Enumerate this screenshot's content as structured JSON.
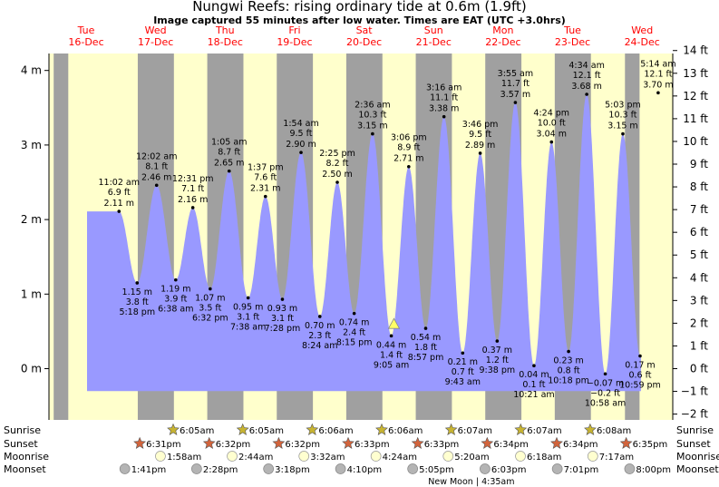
{
  "header": {
    "title": "Nungwi Reefs: rising  ordinary tide at 0.6m (1.9ft)",
    "subtitle": "Image captured 55 minutes after low water. Times are EAT (UTC +3.0hrs)"
  },
  "chart_data": {
    "type": "area",
    "title": "Nungwi Reefs: rising  ordinary tide at 0.6m (1.9ft)",
    "subtitle": "Image captured 55 minutes after low water. Times are EAT (UTC +3.0hrs)",
    "x_range_days": [
      0,
      8.0
    ],
    "ylim_m": [
      -0.3,
      4.3
    ],
    "left_axis": {
      "unit": "m",
      "ticks": [
        {
          "v": 0,
          "label": "0 m"
        },
        {
          "v": 1,
          "label": "1 m"
        },
        {
          "v": 2,
          "label": "2 m"
        },
        {
          "v": 3,
          "label": "3 m"
        },
        {
          "v": 4,
          "label": "4 m"
        }
      ]
    },
    "right_axis": {
      "unit": "ft",
      "ticks": [
        "−2 ft",
        "−1 ft",
        "0 ft",
        "1 ft",
        "2 ft",
        "3 ft",
        "4 ft",
        "5 ft",
        "6 ft",
        "7 ft",
        "8 ft",
        "9 ft",
        "10 ft",
        "11 ft",
        "12 ft",
        "13 ft",
        "14 ft"
      ],
      "values": [
        -2,
        -1,
        0,
        1,
        2,
        3,
        4,
        5,
        6,
        7,
        8,
        9,
        10,
        11,
        12,
        13,
        14
      ]
    },
    "days": [
      {
        "name": "Tue",
        "date": "16-Dec"
      },
      {
        "name": "Wed",
        "date": "17-Dec"
      },
      {
        "name": "Thu",
        "date": "18-Dec"
      },
      {
        "name": "Fri",
        "date": "19-Dec"
      },
      {
        "name": "Sat",
        "date": "20-Dec"
      },
      {
        "name": "Sun",
        "date": "21-Dec"
      },
      {
        "name": "Mon",
        "date": "22-Dec"
      },
      {
        "name": "Tue",
        "date": "23-Dec"
      },
      {
        "name": "Wed",
        "date": "24-Dec"
      }
    ],
    "tides": [
      {
        "time": "11:02 am",
        "ft": "6.9 ft",
        "m": "2.11 m",
        "t": 0.46,
        "v": 2.11,
        "type": "high"
      },
      {
        "time": "5:18 pm",
        "ft": "3.8 ft",
        "m": "1.15 m",
        "t": 0.721,
        "v": 1.15,
        "type": "low"
      },
      {
        "time": "12:02 am",
        "ft": "8.1 ft",
        "m": "2.46 m",
        "t": 1.001,
        "v": 2.46,
        "type": "high"
      },
      {
        "time": "6:38 am",
        "ft": "3.9 ft",
        "m": "1.19 m",
        "t": 1.276,
        "v": 1.19,
        "type": "low"
      },
      {
        "time": "12:31 pm",
        "ft": "7.1 ft",
        "m": "2.16 m",
        "t": 1.522,
        "v": 2.16,
        "type": "high"
      },
      {
        "time": "6:32 pm",
        "ft": "3.5 ft",
        "m": "1.07 m",
        "t": 1.772,
        "v": 1.07,
        "type": "low"
      },
      {
        "time": "1:05 am",
        "ft": "8.7 ft",
        "m": "2.65 m",
        "t": 2.045,
        "v": 2.65,
        "type": "high"
      },
      {
        "time": "7:38 am",
        "ft": "3.1 ft",
        "m": "0.95 m",
        "t": 2.318,
        "v": 0.95,
        "type": "low"
      },
      {
        "time": "1:37 pm",
        "ft": "7.6 ft",
        "m": "2.31 m",
        "t": 2.567,
        "v": 2.31,
        "type": "high"
      },
      {
        "time": "7:28 pm",
        "ft": "3.1 ft",
        "m": "0.93 m",
        "t": 2.811,
        "v": 0.93,
        "type": "low"
      },
      {
        "time": "1:54 am",
        "ft": "9.5 ft",
        "m": "2.90 m",
        "t": 3.079,
        "v": 2.9,
        "type": "high"
      },
      {
        "time": "8:24 am",
        "ft": "2.3 ft",
        "m": "0.70 m",
        "t": 3.35,
        "v": 0.7,
        "type": "low"
      },
      {
        "time": "2:25 pm",
        "ft": "8.2 ft",
        "m": "2.50 m",
        "t": 3.601,
        "v": 2.5,
        "type": "high"
      },
      {
        "time": "8:15 pm",
        "ft": "2.4 ft",
        "m": "0.74 m",
        "t": 3.844,
        "v": 0.74,
        "type": "low"
      },
      {
        "time": "2:36 am",
        "ft": "10.3 ft",
        "m": "3.15 m",
        "t": 4.108,
        "v": 3.15,
        "type": "high"
      },
      {
        "time": "9:05 am",
        "ft": "1.4 ft",
        "m": "0.44 m",
        "t": 4.378,
        "v": 0.44,
        "type": "low"
      },
      {
        "time": "3:06 pm",
        "ft": "8.9 ft",
        "m": "2.71 m",
        "t": 4.629,
        "v": 2.71,
        "type": "high"
      },
      {
        "time": "8:57 pm",
        "ft": "1.8 ft",
        "m": "0.54 m",
        "t": 4.873,
        "v": 0.54,
        "type": "low"
      },
      {
        "time": "3:16 am",
        "ft": "11.1 ft",
        "m": "3.38 m",
        "t": 5.136,
        "v": 3.38,
        "type": "high"
      },
      {
        "time": "9:43 am",
        "ft": "0.7 ft",
        "m": "0.21 m",
        "t": 5.405,
        "v": 0.21,
        "type": "low"
      },
      {
        "time": "3:46 pm",
        "ft": "9.5 ft",
        "m": "2.89 m",
        "t": 5.657,
        "v": 2.89,
        "type": "high"
      },
      {
        "time": "9:38 pm",
        "ft": "1.2 ft",
        "m": "0.37 m",
        "t": 5.901,
        "v": 0.37,
        "type": "low"
      },
      {
        "time": "3:55 am",
        "ft": "11.7 ft",
        "m": "3.57 m",
        "t": 6.163,
        "v": 3.57,
        "type": "high"
      },
      {
        "time": "10:21 am",
        "ft": "0.1 ft",
        "m": "0.04 m",
        "t": 6.431,
        "v": 0.04,
        "type": "low"
      },
      {
        "time": "4:24 pm",
        "ft": "10.0 ft",
        "m": "3.04 m",
        "t": 6.683,
        "v": 3.04,
        "type": "high"
      },
      {
        "time": "10:18 pm",
        "ft": "0.8 ft",
        "m": "0.23 m",
        "t": 6.929,
        "v": 0.23,
        "type": "low"
      },
      {
        "time": "4:34 am",
        "ft": "12.1 ft",
        "m": "3.68 m",
        "t": 7.19,
        "v": 3.68,
        "type": "high"
      },
      {
        "time": "10:58 am",
        "ft": "−0.2 ft",
        "m": "−0.07 m",
        "t": 7.457,
        "v": -0.07,
        "type": "low"
      },
      {
        "time": "5:03 pm",
        "ft": "10.3 ft",
        "m": "3.15 m",
        "t": 7.71,
        "v": 3.15,
        "type": "high"
      },
      {
        "time": "10:59 pm",
        "ft": "0.6 ft",
        "m": "0.17 m",
        "t": 7.958,
        "v": 0.17,
        "type": "low"
      },
      {
        "time": "5:14 am",
        "ft": "12.1 ft",
        "m": "3.70 m",
        "t": 8.218,
        "v": 3.7,
        "type": "high"
      }
    ],
    "current_marker": {
      "t": 4.416,
      "v": 0.6
    },
    "sun_nights": [
      [
        -0.48,
        -0.27
      ],
      [
        0.73,
        1.25
      ],
      [
        1.73,
        2.25
      ],
      [
        2.73,
        3.25
      ],
      [
        3.73,
        4.25
      ],
      [
        4.73,
        5.25
      ],
      [
        5.73,
        6.25
      ],
      [
        6.73,
        7.25
      ],
      [
        7.74,
        7.95
      ]
    ],
    "sunrise": [
      "6:05am",
      "6:05am",
      "6:06am",
      "6:06am",
      "6:07am",
      "6:07am",
      "6:08am"
    ],
    "sunset": [
      "6:31pm",
      "6:32pm",
      "6:32pm",
      "6:33pm",
      "6:33pm",
      "6:34pm",
      "6:34pm",
      "6:35pm"
    ],
    "moonrise": [
      "1:58am",
      "2:44am",
      "3:32am",
      "4:24am",
      "5:20am",
      "6:18am",
      "7:17am"
    ],
    "moonset": [
      "1:41pm",
      "2:28pm",
      "3:18pm",
      "4:10pm",
      "5:05pm",
      "6:03pm",
      "7:01pm",
      "8:00pm"
    ],
    "row_labels": {
      "sunrise": "Sunrise",
      "sunset": "Sunset",
      "moonrise": "Moonrise",
      "moonset": "Moonset"
    },
    "moon_phase_note": "New Moon | 4:35am",
    "colors": {
      "day": "#ffffcc",
      "night": "#a0a0a0",
      "water": "#9999ff",
      "day_label": "#ff0000",
      "sun_icon": "#c8b432",
      "sunset_icon": "#d2643c",
      "moon_icon": "#ffffd0",
      "moonset_icon": "#b4b4b4"
    }
  }
}
